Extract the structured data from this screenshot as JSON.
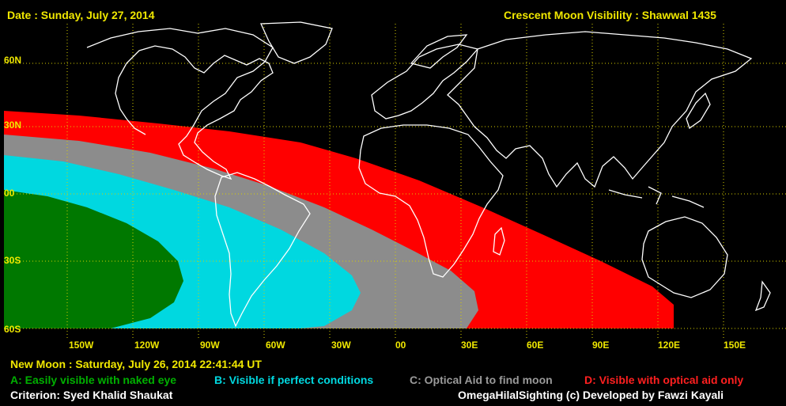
{
  "header": {
    "date": "Date : Sunday, July 27, 2014",
    "title": "Crescent Moon Visibility : Shawwal  1435"
  },
  "map": {
    "lat_labels": [
      "60N",
      "30N",
      "00",
      "30S",
      "60S"
    ],
    "lon_labels": [
      "150W",
      "120W",
      "90W",
      "60W",
      "30W",
      "00",
      "30E",
      "60E",
      "90E",
      "120E",
      "150E"
    ],
    "zones": [
      {
        "code": "A",
        "color": "#007800"
      },
      {
        "code": "B",
        "color": "#00d8e0"
      },
      {
        "code": "C",
        "color": "#8c8c8c"
      },
      {
        "code": "D",
        "color": "#ff0000"
      }
    ],
    "colors": {
      "grid": "#d8d000",
      "coast": "#ffffff",
      "background": "#000000"
    }
  },
  "footer": {
    "new_moon": "New Moon : Saturday, July 26, 2014  22:41:44  UT",
    "legend": {
      "a": "A: Easily visible with naked eye",
      "b": "B: Visible if perfect conditions",
      "c": "C: Optical Aid to find moon",
      "d": "D: Visible with optical aid only"
    },
    "criterion": "Criterion: Syed Khalid Shaukat",
    "credit": "OmegaHilalSighting  (c)  Developed by Fawzi Kayali"
  },
  "legend_colors": {
    "a": "#00b000",
    "b": "#00d8e0",
    "c": "#9a9a9a",
    "d": "#ff2020"
  }
}
